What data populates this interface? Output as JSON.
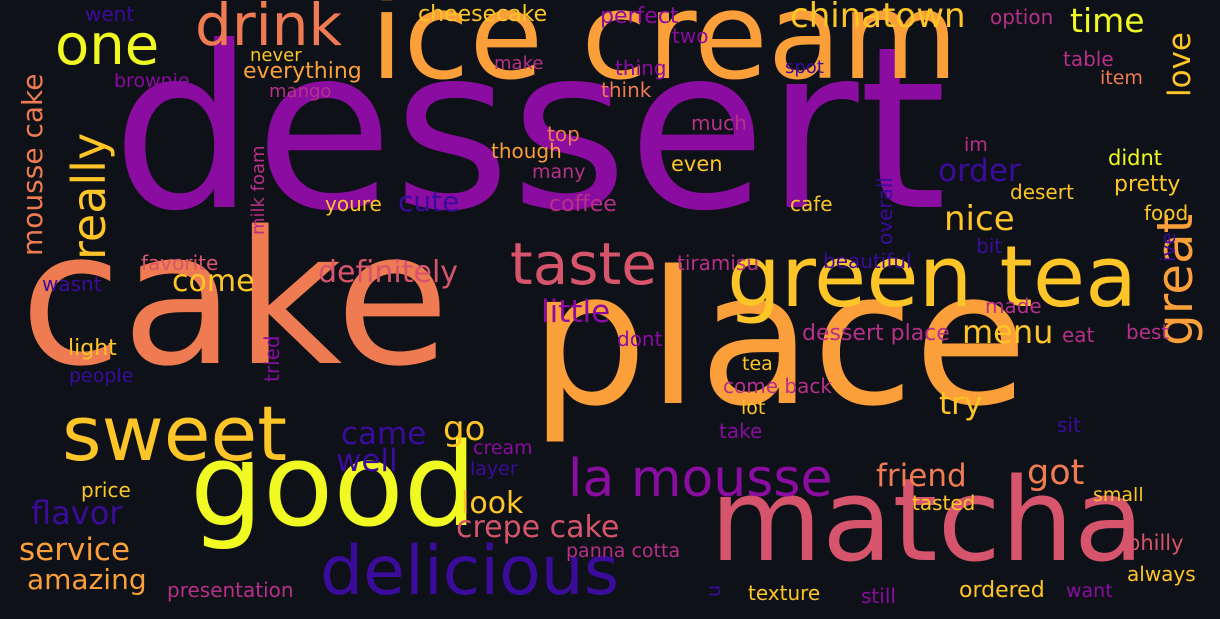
{
  "palette": {
    "background": "#0e1117",
    "purple": "#8a0ca0",
    "indigo": "#3b0c9c",
    "magenta": "#b6308a",
    "pink": "#d6556d",
    "coral": "#ee7b51",
    "orange": "#fb9f3a",
    "gold": "#fdc527",
    "yellow": "#f0f921"
  },
  "words": [
    {
      "id": "dessert",
      "text": "dessert",
      "color": "#8a0ca0"
    },
    {
      "id": "cake",
      "text": "cake",
      "color": "#ee7b51"
    },
    {
      "id": "place",
      "text": "place",
      "color": "#fb9f3a"
    },
    {
      "id": "ice-cream",
      "text": "ice cream",
      "color": "#fb9f3a"
    },
    {
      "id": "green-tea",
      "text": "green tea",
      "color": "#fdc527"
    },
    {
      "id": "matcha",
      "text": "matcha",
      "color": "#d6556d"
    },
    {
      "id": "good",
      "text": "good",
      "color": "#f0f921"
    },
    {
      "id": "delicious",
      "text": "delicious",
      "color": "#3b0c9c"
    },
    {
      "id": "sweet",
      "text": "sweet",
      "color": "#fdc527"
    },
    {
      "id": "la-mousse",
      "text": "la mousse",
      "color": "#8a0ca0"
    },
    {
      "id": "taste",
      "text": "taste",
      "color": "#d6556d"
    },
    {
      "id": "drink",
      "text": "drink",
      "color": "#ee7b51"
    },
    {
      "id": "one",
      "text": "one",
      "color": "#f0f921"
    },
    {
      "id": "great",
      "text": "great",
      "color": "#fb9f3a"
    },
    {
      "id": "really",
      "text": "really",
      "color": "#fdc527"
    },
    {
      "id": "mousse-cake",
      "text": "mousse cake",
      "color": "#ee7b51"
    },
    {
      "id": "chinatown",
      "text": "chinatown",
      "color": "#fdc527"
    },
    {
      "id": "time",
      "text": "time",
      "color": "#f0f921"
    },
    {
      "id": "love",
      "text": "love",
      "color": "#fdc527"
    },
    {
      "id": "cheesecake",
      "text": "cheesecake",
      "color": "#fdc527"
    },
    {
      "id": "perfect",
      "text": "perfect",
      "color": "#8a0ca0"
    },
    {
      "id": "option",
      "text": "option",
      "color": "#b6308a"
    },
    {
      "id": "went",
      "text": "went",
      "color": "#3b0c9c"
    },
    {
      "id": "never",
      "text": "never",
      "color": "#fdc527"
    },
    {
      "id": "two",
      "text": "two",
      "color": "#8a0ca0"
    },
    {
      "id": "make",
      "text": "make",
      "color": "#b6308a"
    },
    {
      "id": "thing",
      "text": "thing",
      "color": "#8a0ca0"
    },
    {
      "id": "spot",
      "text": "spot",
      "color": "#3b0c9c"
    },
    {
      "id": "table",
      "text": "table",
      "color": "#b6308a"
    },
    {
      "id": "item",
      "text": "item",
      "color": "#ee7b51"
    },
    {
      "id": "everything",
      "text": "everything",
      "color": "#fb9f3a"
    },
    {
      "id": "brownie",
      "text": "brownie",
      "color": "#8a0ca0"
    },
    {
      "id": "mango",
      "text": "mango",
      "color": "#b6308a"
    },
    {
      "id": "think",
      "text": "think",
      "color": "#ee7b51"
    },
    {
      "id": "milk-foam",
      "text": "milk foam",
      "color": "#b6308a"
    },
    {
      "id": "much",
      "text": "much",
      "color": "#b6308a"
    },
    {
      "id": "top",
      "text": "top",
      "color": "#ee7b51"
    },
    {
      "id": "though",
      "text": "though",
      "color": "#fb9f3a"
    },
    {
      "id": "many",
      "text": "many",
      "color": "#b6308a"
    },
    {
      "id": "even",
      "text": "even",
      "color": "#fdc527"
    },
    {
      "id": "im",
      "text": "im",
      "color": "#b6308a"
    },
    {
      "id": "didnt",
      "text": "didnt",
      "color": "#f0f921"
    },
    {
      "id": "pretty",
      "text": "pretty",
      "color": "#fdc527"
    },
    {
      "id": "order",
      "text": "order",
      "color": "#3b0c9c"
    },
    {
      "id": "desert",
      "text": "desert",
      "color": "#fdc527"
    },
    {
      "id": "food",
      "text": "food",
      "color": "#fdc527"
    },
    {
      "id": "overall",
      "text": "overall",
      "color": "#3b0c9c"
    },
    {
      "id": "cafe",
      "text": "cafe",
      "color": "#fdc527"
    },
    {
      "id": "youre",
      "text": "youre",
      "color": "#fdc527"
    },
    {
      "id": "cute",
      "text": "cute",
      "color": "#3b0c9c"
    },
    {
      "id": "coffee",
      "text": "coffee",
      "color": "#b6308a"
    },
    {
      "id": "nice",
      "text": "nice",
      "color": "#fdc527"
    },
    {
      "id": "ive",
      "text": "ive",
      "color": "#3b0c9c"
    },
    {
      "id": "bit",
      "text": "bit",
      "color": "#3b0c9c"
    },
    {
      "id": "favorite",
      "text": "favorite",
      "color": "#d6556d"
    },
    {
      "id": "definitely",
      "text": "definitely",
      "color": "#d6556d"
    },
    {
      "id": "tiramisu",
      "text": "tiramisu",
      "color": "#b6308a"
    },
    {
      "id": "beautiful",
      "text": "beautiful",
      "color": "#3b0c9c"
    },
    {
      "id": "wasnt",
      "text": "wasnt",
      "color": "#3b0c9c"
    },
    {
      "id": "come",
      "text": "come",
      "color": "#fdc527"
    },
    {
      "id": "little",
      "text": "little",
      "color": "#8a0ca0"
    },
    {
      "id": "tried",
      "text": "tried",
      "color": "#8a0ca0"
    },
    {
      "id": "made",
      "text": "made",
      "color": "#b6308a"
    },
    {
      "id": "dessert-place",
      "text": "dessert place",
      "color": "#b6308a"
    },
    {
      "id": "menu",
      "text": "menu",
      "color": "#fdc527"
    },
    {
      "id": "eat",
      "text": "eat",
      "color": "#b6308a"
    },
    {
      "id": "best",
      "text": "best",
      "color": "#b6308a"
    },
    {
      "id": "dont",
      "text": "dont",
      "color": "#8a0ca0"
    },
    {
      "id": "light",
      "text": "light",
      "color": "#fdc527"
    },
    {
      "id": "people",
      "text": "people",
      "color": "#3b0c9c"
    },
    {
      "id": "tea",
      "text": "tea",
      "color": "#fdc527"
    },
    {
      "id": "come-back",
      "text": "come back",
      "color": "#b6308a"
    },
    {
      "id": "try",
      "text": "try",
      "color": "#fdc527"
    },
    {
      "id": "lot",
      "text": "lot",
      "color": "#fdc527"
    },
    {
      "id": "take",
      "text": "take",
      "color": "#8a0ca0"
    },
    {
      "id": "sit",
      "text": "sit",
      "color": "#3b0c9c"
    },
    {
      "id": "came",
      "text": "came",
      "color": "#3b0c9c"
    },
    {
      "id": "go",
      "text": "go",
      "color": "#fdc527"
    },
    {
      "id": "cream",
      "text": "cream",
      "color": "#8a0ca0"
    },
    {
      "id": "well",
      "text": "well",
      "color": "#3b0c9c"
    },
    {
      "id": "layer",
      "text": "layer",
      "color": "#3b0c9c"
    },
    {
      "id": "friend",
      "text": "friend",
      "color": "#ee7b51"
    },
    {
      "id": "got",
      "text": "got",
      "color": "#ee7b51"
    },
    {
      "id": "look",
      "text": "look",
      "color": "#fdc527"
    },
    {
      "id": "flavor",
      "text": "flavor",
      "color": "#3b0c9c"
    },
    {
      "id": "price",
      "text": "price",
      "color": "#fdc527"
    },
    {
      "id": "tasted",
      "text": "tasted",
      "color": "#fdc527"
    },
    {
      "id": "small",
      "text": "small",
      "color": "#fdc527"
    },
    {
      "id": "crepe-cake",
      "text": "crepe cake",
      "color": "#d6556d"
    },
    {
      "id": "service",
      "text": "service",
      "color": "#fb9f3a"
    },
    {
      "id": "panna-cotta",
      "text": "panna cotta",
      "color": "#b6308a"
    },
    {
      "id": "philly",
      "text": "philly",
      "color": "#d6556d"
    },
    {
      "id": "amazing",
      "text": "amazing",
      "color": "#fb9f3a"
    },
    {
      "id": "u",
      "text": "u",
      "color": "#3b0c9c"
    },
    {
      "id": "always",
      "text": "always",
      "color": "#fdc527"
    },
    {
      "id": "presentation",
      "text": "presentation",
      "color": "#b6308a"
    },
    {
      "id": "texture",
      "text": "texture",
      "color": "#fdc527"
    },
    {
      "id": "still",
      "text": "still",
      "color": "#8a0ca0"
    },
    {
      "id": "ordered",
      "text": "ordered",
      "color": "#fdc527"
    },
    {
      "id": "want",
      "text": "want",
      "color": "#8a0ca0"
    }
  ]
}
